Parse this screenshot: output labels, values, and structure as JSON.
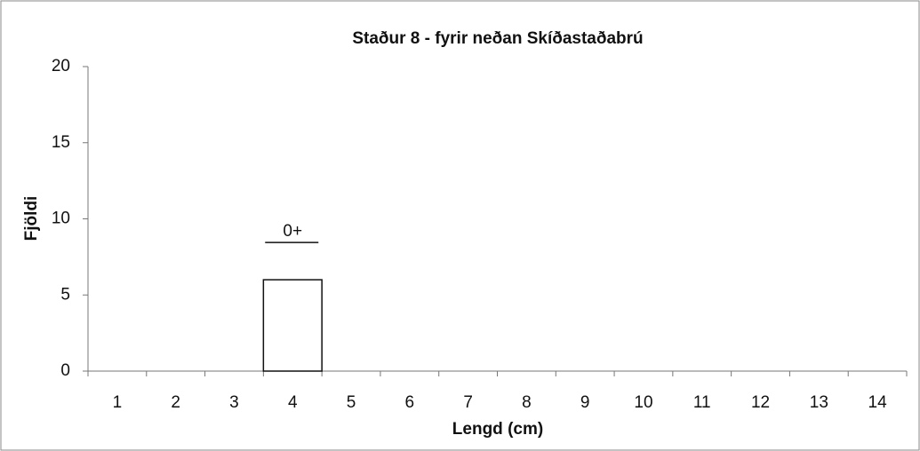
{
  "chart_data": {
    "type": "bar",
    "title": "Staður 8 - fyrir neðan Skíðastaðabrú",
    "x_label": "Lengd (cm)",
    "y_label": "Fjöldi",
    "categories": [
      "1",
      "2",
      "3",
      "4",
      "5",
      "6",
      "7",
      "8",
      "9",
      "10",
      "11",
      "12",
      "13",
      "14"
    ],
    "values": [
      0,
      0,
      0,
      6,
      0,
      0,
      0,
      0,
      0,
      0,
      0,
      0,
      0,
      0
    ],
    "color": "#ffffff",
    "ylim": [
      0,
      20
    ],
    "yticks": [
      0,
      5,
      10,
      15,
      20
    ],
    "grid": false,
    "annotations": [
      {
        "text": "0+",
        "category": "4"
      }
    ]
  }
}
